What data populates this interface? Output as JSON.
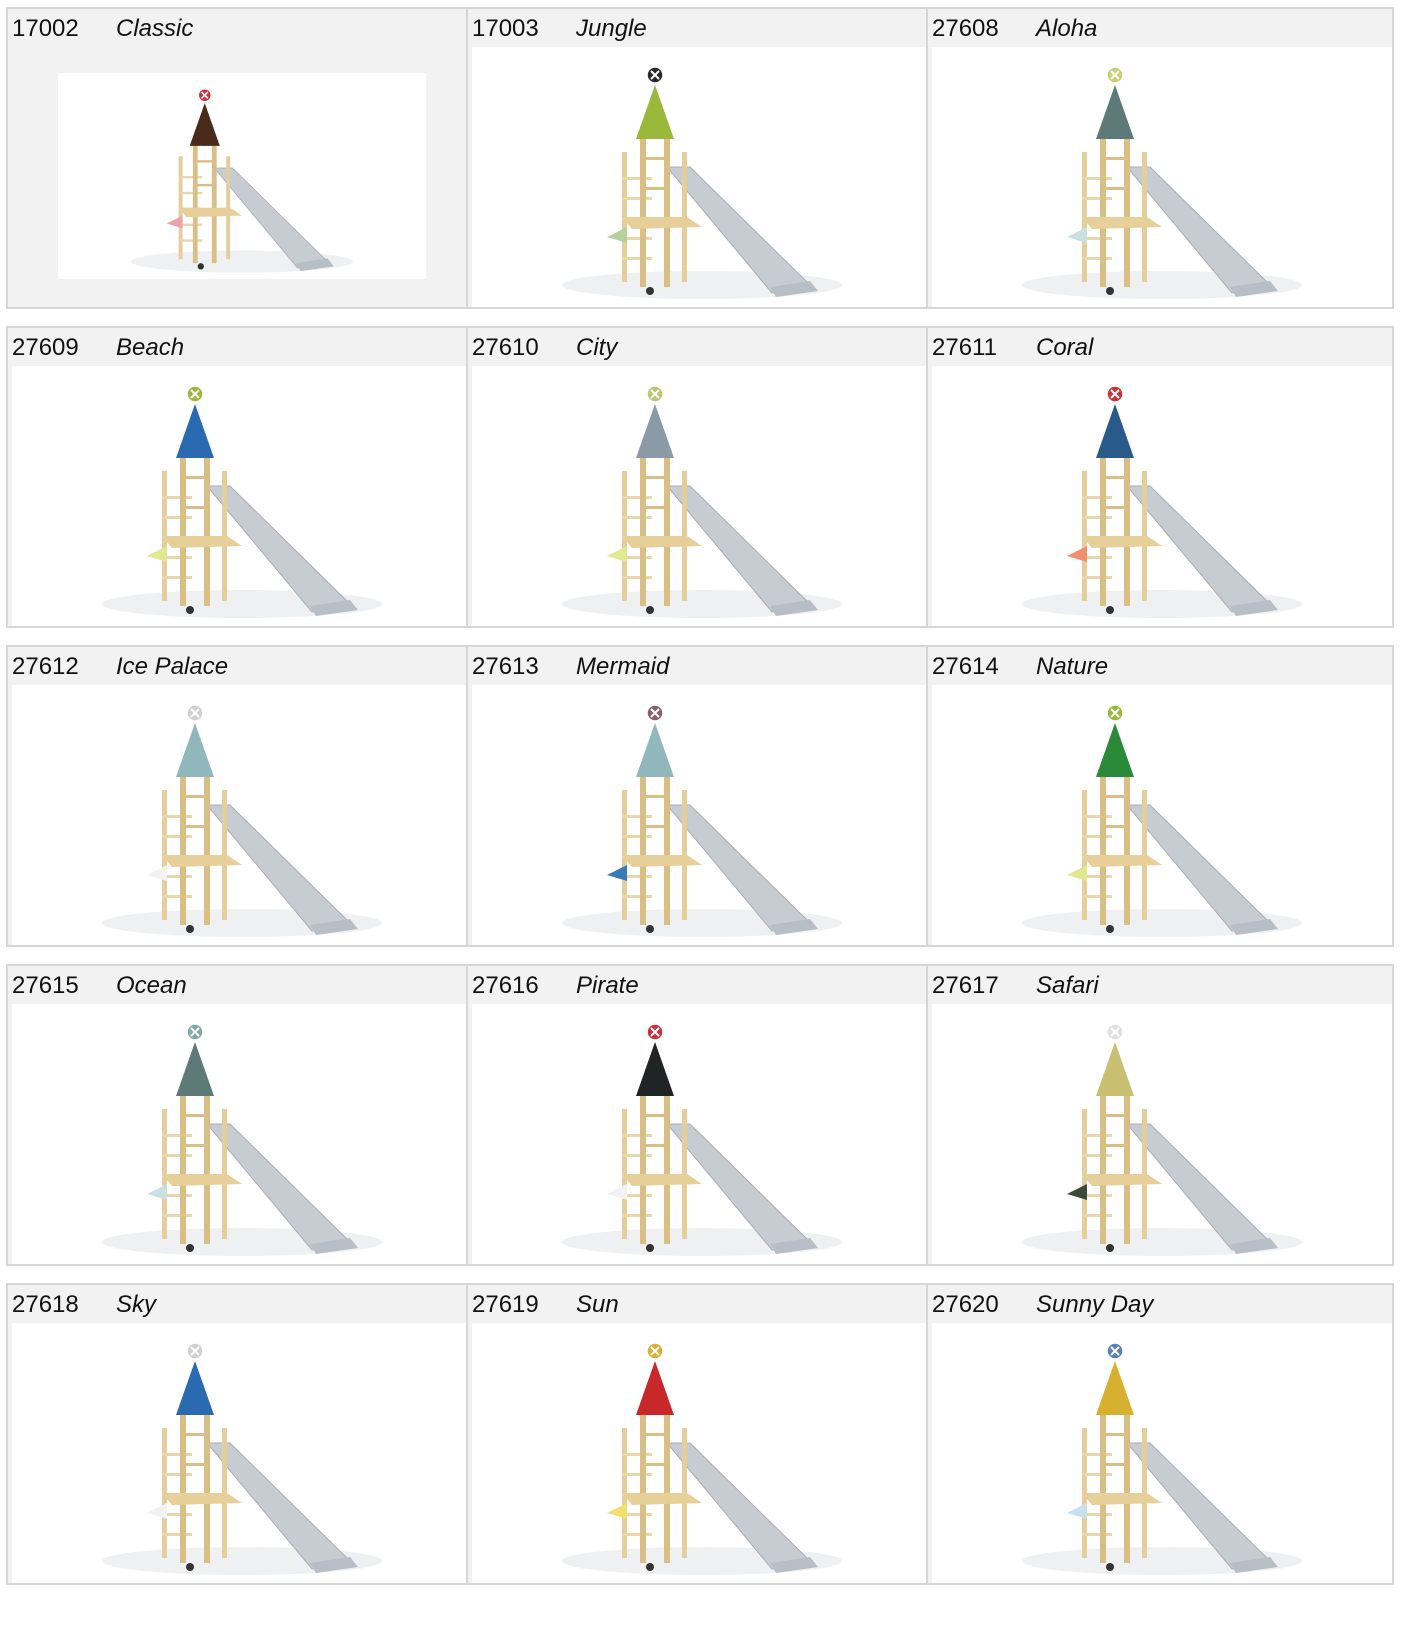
{
  "products": [
    {
      "code": "17002",
      "name": "Classic",
      "roof_color": "#4a2a1a",
      "badge_color": "#c8323a",
      "flag_color": "#f0a0a8"
    },
    {
      "code": "17003",
      "name": "Jungle",
      "roof_color": "#9ab83a",
      "badge_color": "#2a2a2a",
      "flag_color": "#b8d0a0"
    },
    {
      "code": "27608",
      "name": "Aloha",
      "roof_color": "#5e7a78",
      "badge_color": "#c8d070",
      "flag_color": "#c8e0e0"
    },
    {
      "code": "27609",
      "name": "Beach",
      "roof_color": "#2a6ab0",
      "badge_color": "#9ab83a",
      "flag_color": "#e0e890"
    },
    {
      "code": "27610",
      "name": "City",
      "roof_color": "#8a9aa6",
      "badge_color": "#b8c870",
      "flag_color": "#e0e890"
    },
    {
      "code": "27611",
      "name": "Coral",
      "roof_color": "#2a5a8a",
      "badge_color": "#c8323a",
      "flag_color": "#f09070"
    },
    {
      "code": "27612",
      "name": "Ice Palace",
      "roof_color": "#90b8bc",
      "badge_color": "#d0d0d0",
      "flag_color": "#f2f2f2"
    },
    {
      "code": "27613",
      "name": "Mermaid",
      "roof_color": "#90b8bc",
      "badge_color": "#8a6070",
      "flag_color": "#3a7ab8"
    },
    {
      "code": "27614",
      "name": "Nature",
      "roof_color": "#2a8a3a",
      "badge_color": "#9ab83a",
      "flag_color": "#e0e890"
    },
    {
      "code": "27615",
      "name": "Ocean",
      "roof_color": "#5e7a78",
      "badge_color": "#80a8a8",
      "flag_color": "#c8e0e0"
    },
    {
      "code": "27616",
      "name": "Pirate",
      "roof_color": "#202424",
      "badge_color": "#c8323a",
      "flag_color": "#f2f2f2"
    },
    {
      "code": "27617",
      "name": "Safari",
      "roof_color": "#c8c070",
      "badge_color": "#e0e0e0",
      "flag_color": "#3a4a3a"
    },
    {
      "code": "27618",
      "name": "Sky",
      "roof_color": "#2a6ab0",
      "badge_color": "#d0d0d0",
      "flag_color": "#f2f2f2"
    },
    {
      "code": "27619",
      "name": "Sun",
      "roof_color": "#c8282a",
      "badge_color": "#d8b030",
      "flag_color": "#f0e070"
    },
    {
      "code": "27620",
      "name": "Sunny Day",
      "roof_color": "#d8b030",
      "badge_color": "#5a80b8",
      "flag_color": "#c8e0f0"
    }
  ]
}
